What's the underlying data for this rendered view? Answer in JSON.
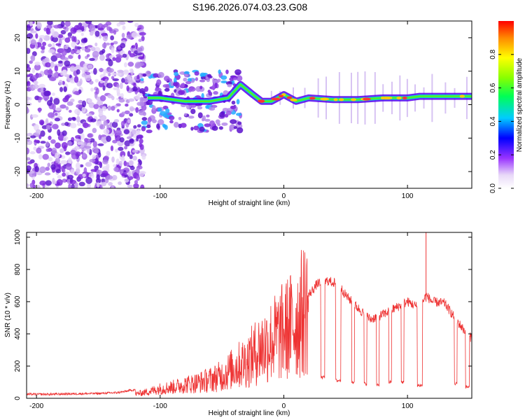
{
  "title": "S196.2026.074.03.23.G08",
  "colors": {
    "snr_line": "#ee3333",
    "spectrum_low": "#ccaaee",
    "spectrum_mid": "#7722dd",
    "axis": "#000000"
  },
  "chart_data": [
    {
      "type": "heatmap",
      "name": "spectrogram",
      "xlabel": "Height of straight line (km)",
      "ylabel": "Frequency (Hz)",
      "xlim": [
        -208,
        152
      ],
      "ylim": [
        -25,
        25
      ],
      "xticks": [
        -200,
        -100,
        0,
        100
      ],
      "yticks": [
        -20,
        -10,
        0,
        10,
        20
      ],
      "colorbar": {
        "label": "Normalized spectral amplitude",
        "range": [
          0,
          1
        ],
        "ticks": [
          "0.0",
          "0.2",
          "0.4",
          "0.6",
          "0.8"
        ]
      },
      "ridge": {
        "description": "dominant frequency ridge (data units)",
        "x": [
          -110,
          -100,
          -80,
          -60,
          -45,
          -35,
          -25,
          -18,
          -10,
          0,
          10,
          20,
          40,
          60,
          80,
          100,
          110,
          120,
          140,
          152
        ],
        "y": [
          2,
          2,
          1,
          1,
          2,
          6,
          3,
          1,
          1,
          3,
          1,
          2,
          1.5,
          1.5,
          2,
          2,
          2.5,
          2.5,
          2.5,
          2.5
        ]
      }
    },
    {
      "type": "line",
      "name": "snr",
      "xlabel": "Height of straight line (km)",
      "ylabel": "SNR (10 * v/v)",
      "xlim": [
        -208,
        152
      ],
      "ylim": [
        0,
        1030
      ],
      "xticks": [
        -200,
        -100,
        0,
        100
      ],
      "yticks": [
        0,
        200,
        400,
        600,
        800,
        1000
      ],
      "series": [
        {
          "name": "SNR",
          "x": [
            -208,
            -190,
            -170,
            -150,
            -135,
            -130,
            -120,
            -110,
            -100,
            -90,
            -80,
            -70,
            -60,
            -50,
            -40,
            -30,
            -20,
            -10,
            0,
            10,
            20,
            28,
            30,
            35,
            40,
            45,
            50,
            55,
            60,
            70,
            80,
            90,
            100,
            110,
            115,
            120,
            130,
            140,
            150
          ],
          "y": [
            25,
            25,
            28,
            30,
            35,
            40,
            55,
            80,
            110,
            120,
            140,
            150,
            170,
            200,
            260,
            300,
            380,
            430,
            480,
            530,
            640,
            720,
            700,
            730,
            720,
            700,
            640,
            600,
            560,
            490,
            520,
            560,
            600,
            560,
            640,
            600,
            590,
            480,
            380
          ]
        }
      ],
      "dips": {
        "description": "sharp SNR dropouts (start, end, floor) in data units",
        "x_start": [
          30,
          42,
          55,
          65,
          75,
          85,
          95,
          108,
          138,
          147
        ],
        "x_end": [
          33,
          46,
          57,
          67,
          77,
          87,
          97,
          112,
          140,
          150
        ],
        "floor": [
          130,
          110,
          100,
          90,
          80,
          100,
          100,
          80,
          90,
          70
        ]
      }
    }
  ]
}
